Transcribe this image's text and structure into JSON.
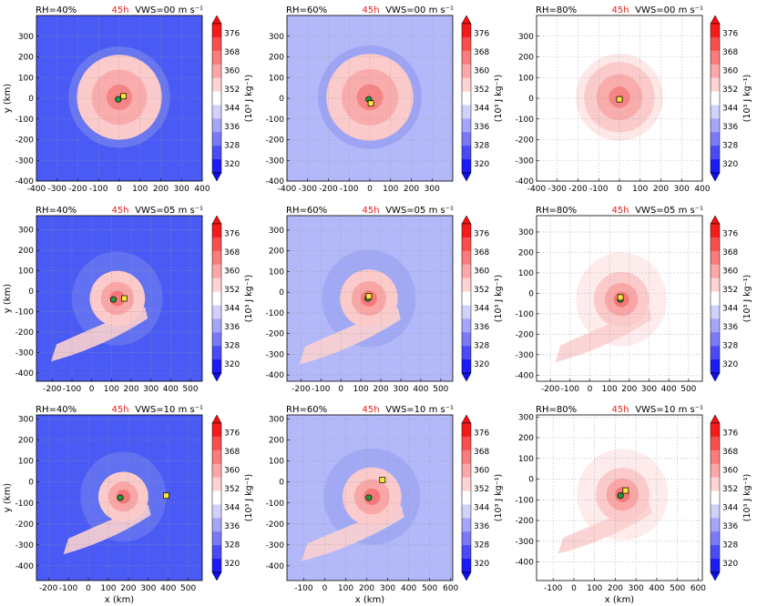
{
  "figure": {
    "colorbar": {
      "ticks": [
        "320",
        "328",
        "336",
        "344",
        "352",
        "360",
        "368",
        "376"
      ],
      "label": "(10³ J kg⁻¹)"
    },
    "time_label": "45h",
    "x_axis_label": "x (km)",
    "y_axis_label": "y (km)"
  },
  "chart_data": [
    {
      "type": "heatmap",
      "rh": "RH=40%",
      "vws": "VWS=00 m s⁻¹",
      "xlim": [
        -400,
        400
      ],
      "ylim": [
        -400,
        400
      ],
      "xticks": [
        -400,
        -300,
        -200,
        -100,
        0,
        100,
        200,
        300,
        400
      ],
      "yticks": [
        -400,
        -300,
        -200,
        -100,
        0,
        100,
        200,
        300
      ],
      "green_center": [
        -5,
        -5
      ],
      "yellow_center": [
        20,
        10
      ],
      "storm": {
        "center": [
          0,
          5
        ],
        "radius": 205,
        "spiral": 0,
        "bg": "#4a5af4",
        "outer": "#6c7af0"
      }
    },
    {
      "type": "heatmap",
      "rh": "RH=60%",
      "vws": "VWS=00 m s⁻¹",
      "xlim": [
        -400,
        400
      ],
      "ylim": [
        -400,
        400
      ],
      "xticks": [
        -400,
        -300,
        -200,
        -100,
        0,
        100,
        200,
        300
      ],
      "yticks": [
        -400,
        -300,
        -200,
        -100,
        0,
        100,
        200,
        300
      ],
      "green_center": [
        -5,
        -5
      ],
      "yellow_center": [
        5,
        -25
      ],
      "storm": {
        "center": [
          0,
          5
        ],
        "radius": 210,
        "spiral": 0,
        "bg": "#b3b8f9",
        "outer": "#9aa2f3"
      }
    },
    {
      "type": "heatmap",
      "rh": "RH=80%",
      "vws": "VWS=00 m s⁻¹",
      "xlim": [
        -400,
        400
      ],
      "ylim": [
        -400,
        400
      ],
      "xticks": [
        -400,
        -300,
        -200,
        -100,
        0,
        100,
        200,
        300,
        400
      ],
      "yticks": [
        -400,
        -300,
        -200,
        -100,
        0,
        100,
        200,
        300
      ],
      "green_center": [
        0,
        -5
      ],
      "yellow_center": [
        0,
        -5
      ],
      "storm": {
        "center": [
          0,
          5
        ],
        "radius": 170,
        "spiral": 0,
        "bg": "#ffffff",
        "outer": "#fde4e4"
      }
    },
    {
      "type": "heatmap",
      "rh": "RH=40%",
      "vws": "VWS=05 m s⁻¹",
      "xlim": [
        -280,
        560
      ],
      "ylim": [
        -440,
        370
      ],
      "xticks": [
        -200,
        -100,
        0,
        100,
        200,
        300,
        400,
        500
      ],
      "yticks": [
        -400,
        -300,
        -200,
        -100,
        0,
        100,
        200,
        300
      ],
      "green_center": [
        110,
        -40
      ],
      "yellow_center": [
        165,
        -35
      ],
      "storm": {
        "center": [
          130,
          -35
        ],
        "radius": 140,
        "spiral": 1,
        "bg": "#4a5af4",
        "outer": "#6c7af0"
      }
    },
    {
      "type": "heatmap",
      "rh": "RH=60%",
      "vws": "VWS=05 m s⁻¹",
      "xlim": [
        -270,
        560
      ],
      "ylim": [
        -430,
        370
      ],
      "xticks": [
        -200,
        -100,
        0,
        100,
        200,
        300,
        400,
        500
      ],
      "yticks": [
        -400,
        -300,
        -200,
        -100,
        0,
        100,
        200,
        300
      ],
      "green_center": [
        135,
        -30
      ],
      "yellow_center": [
        140,
        -20
      ],
      "storm": {
        "center": [
          140,
          -30
        ],
        "radius": 145,
        "spiral": 1,
        "bg": "#b3b8f9",
        "outer": "#9aa2f3"
      }
    },
    {
      "type": "heatmap",
      "rh": "RH=80%",
      "vws": "VWS=05 m s⁻¹",
      "xlim": [
        -270,
        570
      ],
      "ylim": [
        -430,
        380
      ],
      "xticks": [
        -200,
        -100,
        0,
        100,
        200,
        300,
        400,
        500
      ],
      "yticks": [
        -400,
        -300,
        -200,
        -100,
        0,
        100,
        200,
        300
      ],
      "green_center": [
        155,
        -30
      ],
      "yellow_center": [
        155,
        -20
      ],
      "storm": {
        "center": [
          160,
          -30
        ],
        "radius": 140,
        "spiral": 1,
        "bg": "#ffffff",
        "outer": "#fde4e4"
      }
    },
    {
      "type": "heatmap",
      "rh": "RH=40%",
      "vws": "VWS=10 m s⁻¹",
      "xlim": [
        -260,
        570
      ],
      "ylim": [
        -470,
        320
      ],
      "xticks": [
        -200,
        -100,
        0,
        100,
        200,
        300,
        400,
        500
      ],
      "yticks": [
        -400,
        -300,
        -200,
        -100,
        0,
        100,
        200,
        300
      ],
      "green_center": [
        160,
        -75
      ],
      "yellow_center": [
        390,
        -65
      ],
      "storm": {
        "center": [
          175,
          -70
        ],
        "radius": 125,
        "spiral": 1,
        "bg": "#4a5af4",
        "outer": "#6c7af0"
      }
    },
    {
      "type": "heatmap",
      "rh": "RH=60%",
      "vws": "VWS=10 m s⁻¹",
      "xlim": [
        -180,
        610
      ],
      "ylim": [
        -470,
        320
      ],
      "xticks": [
        -100,
        0,
        100,
        200,
        300,
        400,
        500,
        600
      ],
      "yticks": [
        -400,
        -300,
        -200,
        -100,
        0,
        100,
        200,
        300
      ],
      "green_center": [
        210,
        -75
      ],
      "yellow_center": [
        275,
        10
      ],
      "storm": {
        "center": [
          225,
          -70
        ],
        "radius": 140,
        "spiral": 1,
        "bg": "#b3b8f9",
        "outer": "#9aa2f3"
      }
    },
    {
      "type": "heatmap",
      "rh": "RH=80%",
      "vws": "VWS=10 m s⁻¹",
      "xlim": [
        -180,
        620
      ],
      "ylim": [
        -490,
        310
      ],
      "xticks": [
        -100,
        0,
        100,
        200,
        300,
        400,
        500,
        600
      ],
      "yticks": [
        -400,
        -300,
        -200,
        -100,
        0,
        100,
        200,
        300
      ],
      "green_center": [
        225,
        -80
      ],
      "yellow_center": [
        250,
        -55
      ],
      "storm": {
        "center": [
          235,
          -75
        ],
        "radius": 130,
        "spiral": 1,
        "bg": "#ffffff",
        "outer": "#fde4e4"
      }
    }
  ]
}
